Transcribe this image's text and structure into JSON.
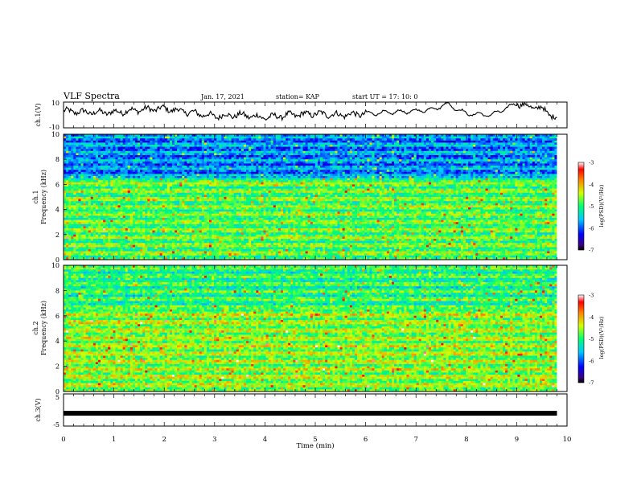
{
  "header": {
    "title": "VLF Spectra",
    "date": "Jan. 17, 2021",
    "station": "station= KAP",
    "start": "start  UT =   17: 10: 0"
  },
  "chart_data": [
    {
      "type": "line",
      "panel": "ch1-waveform",
      "ylabel": "ch.1(V)",
      "ylim": [
        -10,
        10
      ],
      "yticks": [
        "10",
        "-10"
      ],
      "xlim": [
        0,
        10
      ],
      "x_minutes": [
        0,
        0.5,
        1,
        1.5,
        2,
        2.5,
        3,
        3.5,
        4,
        4.5,
        5,
        5.5,
        6,
        6.5,
        7,
        7.4,
        7.6,
        8,
        8.5,
        9,
        9.2,
        9.5,
        9.8
      ],
      "y_volts": [
        3,
        2,
        2,
        4,
        5,
        2,
        -1,
        0,
        -2,
        0,
        1,
        0,
        1,
        2,
        3,
        5,
        9,
        1,
        0,
        9,
        7,
        5,
        -3
      ]
    },
    {
      "type": "heatmap",
      "panel": "ch1-spectrogram",
      "ylabel_top": "ch.1",
      "ylabel": "Frequency (kHz)",
      "ylim": [
        0,
        10
      ],
      "yticks": [
        "0",
        "2",
        "4",
        "6",
        "8",
        "10"
      ],
      "xlim": [
        0,
        10
      ],
      "colorbar": {
        "label": "log(PSD)(V²/Hz)",
        "range": [
          -7,
          -3
        ],
        "ticks": [
          "-3",
          "-4",
          "-5",
          "-6",
          "-7"
        ]
      },
      "description_values": {
        "0-6.5kHz": -4.8,
        "6.5-10kHz": -5.8
      }
    },
    {
      "type": "heatmap",
      "panel": "ch2-spectrogram",
      "ylabel_top": "ch.2",
      "ylabel": "Frequency (kHz)",
      "ylim": [
        0,
        10
      ],
      "yticks": [
        "0",
        "2",
        "4",
        "6",
        "8",
        "10"
      ],
      "xlim": [
        0,
        10
      ],
      "colorbar": {
        "label": "log(PSD)(V²/Hz)",
        "range": [
          -7,
          -3
        ],
        "ticks": [
          "-3",
          "-4",
          "-5",
          "-6",
          "-7"
        ]
      },
      "description_values": {
        "0-6.5kHz": -4.6,
        "6.5-10kHz": -5.0
      }
    },
    {
      "type": "line",
      "panel": "ch3-waveform",
      "ylabel": "ch.3(V)",
      "ylim": [
        -5,
        5
      ],
      "yticks": [
        "5",
        "-5"
      ],
      "xlim": [
        0,
        10
      ],
      "x_minutes": [
        0,
        9.8
      ],
      "y_volts": [
        -1,
        -1
      ]
    }
  ],
  "xaxis": {
    "label": "Time (min)",
    "ticks": [
      "0",
      "1",
      "2",
      "3",
      "4",
      "5",
      "6",
      "7",
      "8",
      "9",
      "10"
    ]
  }
}
